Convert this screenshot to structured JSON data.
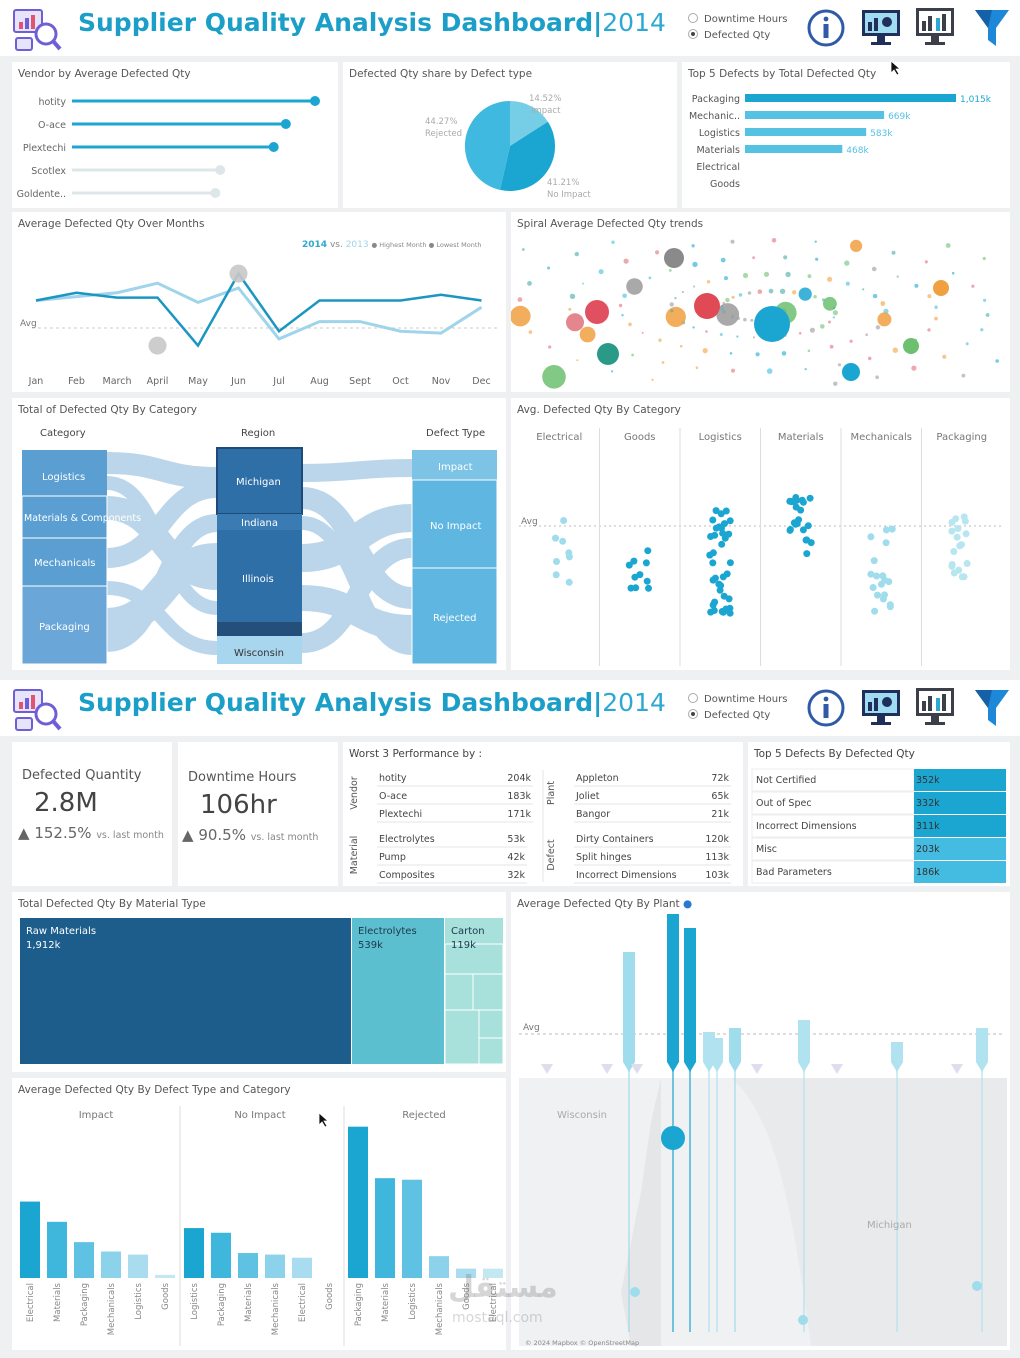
{
  "header": {
    "title": "Supplier Quality Analysis Dashboard",
    "title_sep": "|",
    "year": "2014",
    "radio_options": [
      "Downtime Hours",
      "Defected Qty"
    ],
    "radio_selected": "Defected Qty"
  },
  "p1": {
    "vendor": {
      "title": "Vendor  by Average Defected Qty",
      "items": [
        {
          "label": "hotity",
          "value": 1.0
        },
        {
          "label": "O-ace",
          "value": 0.88
        },
        {
          "label": "Plextechi",
          "value": 0.83
        },
        {
          "label": "Scotlex",
          "value": 0.61
        },
        {
          "label": "Goldente..",
          "value": 0.59
        }
      ]
    },
    "donut": {
      "title": "Defected Qty share by Defect type",
      "l1": "14.52%",
      "l1b": "Impact",
      "l2": "44.27%",
      "l2b": "Rejected",
      "l3": "41.21%",
      "l3b": "No Impact"
    },
    "top5": {
      "title": "Top 5 Defects by Total Defected Qty",
      "items": [
        {
          "label": "Packaging",
          "value": 1015,
          "text": "1,015k"
        },
        {
          "label": "Mechanic..",
          "value": 669,
          "text": "669k"
        },
        {
          "label": "Logistics",
          "value": 583,
          "text": "583k"
        },
        {
          "label": "Materials",
          "value": 468,
          "text": "468k"
        },
        {
          "label": "Electrical",
          "value": 0,
          "text": ""
        },
        {
          "label": "Goods",
          "value": 0,
          "text": ""
        }
      ]
    },
    "months": {
      "title": "Average Defected Qty Over Months",
      "legend_a": "2014",
      "legend_vs": "vs.",
      "legend_b": "2013",
      "legend_hi": "Highest Month",
      "legend_lo": "Lowest Month",
      "avg": "Avg",
      "labels": [
        "Jan",
        "Feb",
        "March",
        "April",
        "May",
        "Jun",
        "Jul",
        "Aug",
        "Sept",
        "Oct",
        "Nov",
        "Dec"
      ],
      "s2014": [
        0.38,
        0.3,
        0.35,
        0.35,
        0.85,
        0.1,
        0.7,
        0.38,
        0.38,
        0.38,
        0.32,
        0.38
      ],
      "s2013": [
        0.38,
        0.34,
        0.3,
        0.2,
        0.4,
        0.25,
        0.78,
        0.6,
        0.6,
        0.7,
        0.72,
        0.45
      ]
    },
    "spiral": {
      "title": "Spiral Average Defected Qty trends"
    },
    "sankey": {
      "title": "Total of Defected Qty By Category",
      "h_cat": "Category",
      "h_reg": "Region",
      "h_def": "Defect Type",
      "cats": [
        "Logistics",
        "Materials & Components",
        "Mechanicals",
        "Packaging"
      ],
      "regs": [
        "Michigan",
        "Indiana",
        "Illinois",
        "Wisconsin"
      ],
      "defs": [
        "Impact",
        "No Impact",
        "Rejected"
      ]
    },
    "strip": {
      "title": "Avg. Defected Qty By Category",
      "cols": [
        "Electrical",
        "Goods",
        "Logistics",
        "Materials",
        "Mechanicals",
        "Packaging"
      ],
      "avg": "Avg"
    }
  },
  "p2": {
    "kpi1": {
      "label": "Defected Quantity",
      "value": "2.8M",
      "delta": "152.5%",
      "vs": "vs. last month"
    },
    "kpi2": {
      "label": "Downtime Hours",
      "value": "106hr",
      "delta": "90.5%",
      "vs": "vs. last month"
    },
    "worst": {
      "title": "Worst 3 Performance by :",
      "g_vendor": "Vendor",
      "g_plant": "Plant",
      "g_material": "Material",
      "g_defect": "Defect",
      "vendor": [
        [
          "hotity",
          "204k"
        ],
        [
          "O-ace",
          "183k"
        ],
        [
          "Plextechi",
          "171k"
        ]
      ],
      "plant": [
        [
          "Appleton",
          "72k"
        ],
        [
          "Joliet",
          "65k"
        ],
        [
          "Bangor",
          "21k"
        ]
      ],
      "material": [
        [
          "Electrolytes",
          "53k"
        ],
        [
          "Pump",
          "42k"
        ],
        [
          "Composites",
          "32k"
        ]
      ],
      "defect": [
        [
          "Dirty Containers",
          "120k"
        ],
        [
          "Split hinges",
          "113k"
        ],
        [
          "Incorrect Dimensions",
          "103k"
        ]
      ]
    },
    "top5": {
      "title": "Top 5 Defects By Defected Qty",
      "items": [
        [
          "Not Certified",
          "352k"
        ],
        [
          "Out of Spec",
          "332k"
        ],
        [
          "Incorrect Dimensions",
          "311k"
        ],
        [
          "Misc",
          "203k"
        ],
        [
          "Bad Parameters",
          "186k"
        ]
      ]
    },
    "tree": {
      "title": "Total Defected Qty By Material Type",
      "a": "Raw Materials",
      "av": "1,912k",
      "b": "Electrolytes",
      "bv": "539k",
      "c": "Carton",
      "cv": "119k"
    },
    "plant": {
      "title": "Average Defected Qty By Plant",
      "avg": "Avg",
      "wisconsin": "Wisconsin",
      "michigan": "Michigan",
      "credit": "© 2024 Mapbox © OpenStreetMap"
    },
    "dtc": {
      "title": "Average  Defected Qty By Defect Type and Category",
      "groups": [
        {
          "name": "Impact",
          "labels": [
            "Electrical",
            "Materials",
            "Packaging",
            "Mechanicals",
            "Logistics",
            "Goods"
          ],
          "values": [
            0.49,
            0.36,
            0.23,
            0.17,
            0.15,
            0.02
          ]
        },
        {
          "name": "No Impact",
          "labels": [
            "Logistics",
            "Packaging",
            "Materials",
            "Mechanicals",
            "Electrical",
            "Goods"
          ],
          "values": [
            0.32,
            0.29,
            0.16,
            0.15,
            0.13,
            0
          ]
        },
        {
          "name": "Rejected",
          "labels": [
            "Packaging",
            "Materials",
            "Logistics",
            "Mechanicals",
            "Goods",
            "Electrical"
          ],
          "values": [
            0.97,
            0.64,
            0.63,
            0.14,
            0.06,
            0.06
          ]
        }
      ]
    }
  },
  "watermark": {
    "a": "مستقل",
    "b": "mostaql.com"
  }
}
